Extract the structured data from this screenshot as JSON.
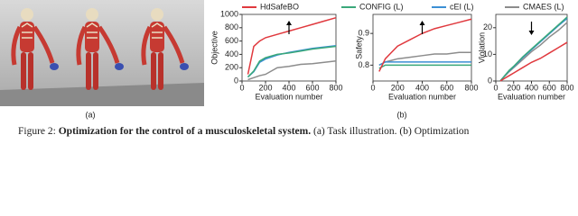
{
  "figure": {
    "panel_labels": [
      "(a)",
      "(b)"
    ],
    "caption": {
      "prefix": "Figure 2:",
      "bold": "Optimization for the control of a musculoskeletal system.",
      "rest": "(a) Task illustration. (b) Optimization"
    }
  },
  "chart_data": [
    {
      "type": "line",
      "ylabel": "Objective",
      "xlabel": "Evaluation number",
      "x": [
        50,
        100,
        150,
        200,
        300,
        400,
        500,
        600,
        700,
        800
      ],
      "xlim": [
        0,
        800
      ],
      "xticks": [
        0,
        200,
        400,
        600,
        800
      ],
      "ylim": [
        0,
        1000
      ],
      "yticks": [
        0,
        200,
        400,
        600,
        800,
        1000
      ],
      "series": [
        {
          "name": "HdSafeBO",
          "color": "#e0393e",
          "values": [
            100,
            520,
            600,
            650,
            700,
            750,
            800,
            850,
            900,
            950
          ]
        },
        {
          "name": "CONFIG (L)",
          "color": "#3aa87a",
          "values": [
            60,
            150,
            300,
            350,
            400,
            420,
            450,
            480,
            500,
            520
          ]
        },
        {
          "name": "cEI (L)",
          "color": "#3b8fd4",
          "values": [
            60,
            140,
            280,
            330,
            390,
            430,
            460,
            490,
            510,
            530
          ]
        },
        {
          "name": "CMAES (L)",
          "color": "#8c8c8c",
          "values": [
            20,
            50,
            80,
            100,
            200,
            220,
            250,
            260,
            280,
            300
          ]
        }
      ]
    },
    {
      "type": "line",
      "ylabel": "Safety",
      "xlabel": "Evaluation number",
      "x": [
        50,
        100,
        150,
        200,
        300,
        400,
        500,
        600,
        700,
        800
      ],
      "xlim": [
        0,
        800
      ],
      "xticks": [
        0,
        200,
        400,
        600,
        800
      ],
      "ylim": [
        0.75,
        0.96
      ],
      "yticks": [
        0.8,
        0.9
      ],
      "series": [
        {
          "color": "#e0393e",
          "values": [
            0.78,
            0.82,
            0.84,
            0.86,
            0.88,
            0.9,
            0.915,
            0.925,
            0.935,
            0.945
          ]
        },
        {
          "color": "#3aa87a",
          "values": [
            0.79,
            0.8,
            0.8,
            0.8,
            0.8,
            0.8,
            0.8,
            0.8,
            0.8,
            0.8
          ]
        },
        {
          "color": "#3b8fd4",
          "values": [
            0.8,
            0.81,
            0.81,
            0.81,
            0.81,
            0.81,
            0.81,
            0.81,
            0.81,
            0.81
          ]
        },
        {
          "color": "#8c8c8c",
          "values": [
            0.8,
            0.81,
            0.815,
            0.82,
            0.825,
            0.83,
            0.835,
            0.835,
            0.84,
            0.84
          ]
        }
      ]
    },
    {
      "type": "line",
      "ylabel": "Violation",
      "xlabel": "Evaluation number",
      "x": [
        50,
        100,
        150,
        200,
        300,
        400,
        500,
        600,
        700,
        800
      ],
      "xlim": [
        0,
        800
      ],
      "xticks": [
        0,
        200,
        400,
        600,
        800
      ],
      "ylim": [
        0,
        25
      ],
      "yticks": [
        0,
        10,
        20
      ],
      "series": [
        {
          "color": "#e0393e",
          "values": [
            0,
            1,
            2,
            3,
            5,
            7,
            8.5,
            10.5,
            12.5,
            14.5
          ]
        },
        {
          "color": "#3aa87a",
          "values": [
            0,
            2,
            4,
            5.5,
            9,
            12,
            15,
            18,
            21,
            24
          ]
        },
        {
          "color": "#3b8fd4",
          "values": [
            0,
            2,
            3.8,
            5.3,
            8.7,
            11.7,
            14.7,
            17.7,
            20.7,
            23.5
          ]
        },
        {
          "color": "#8c8c8c",
          "values": [
            0,
            1.8,
            3.5,
            5,
            8,
            11,
            13.5,
            16.5,
            19,
            22
          ]
        }
      ]
    }
  ]
}
